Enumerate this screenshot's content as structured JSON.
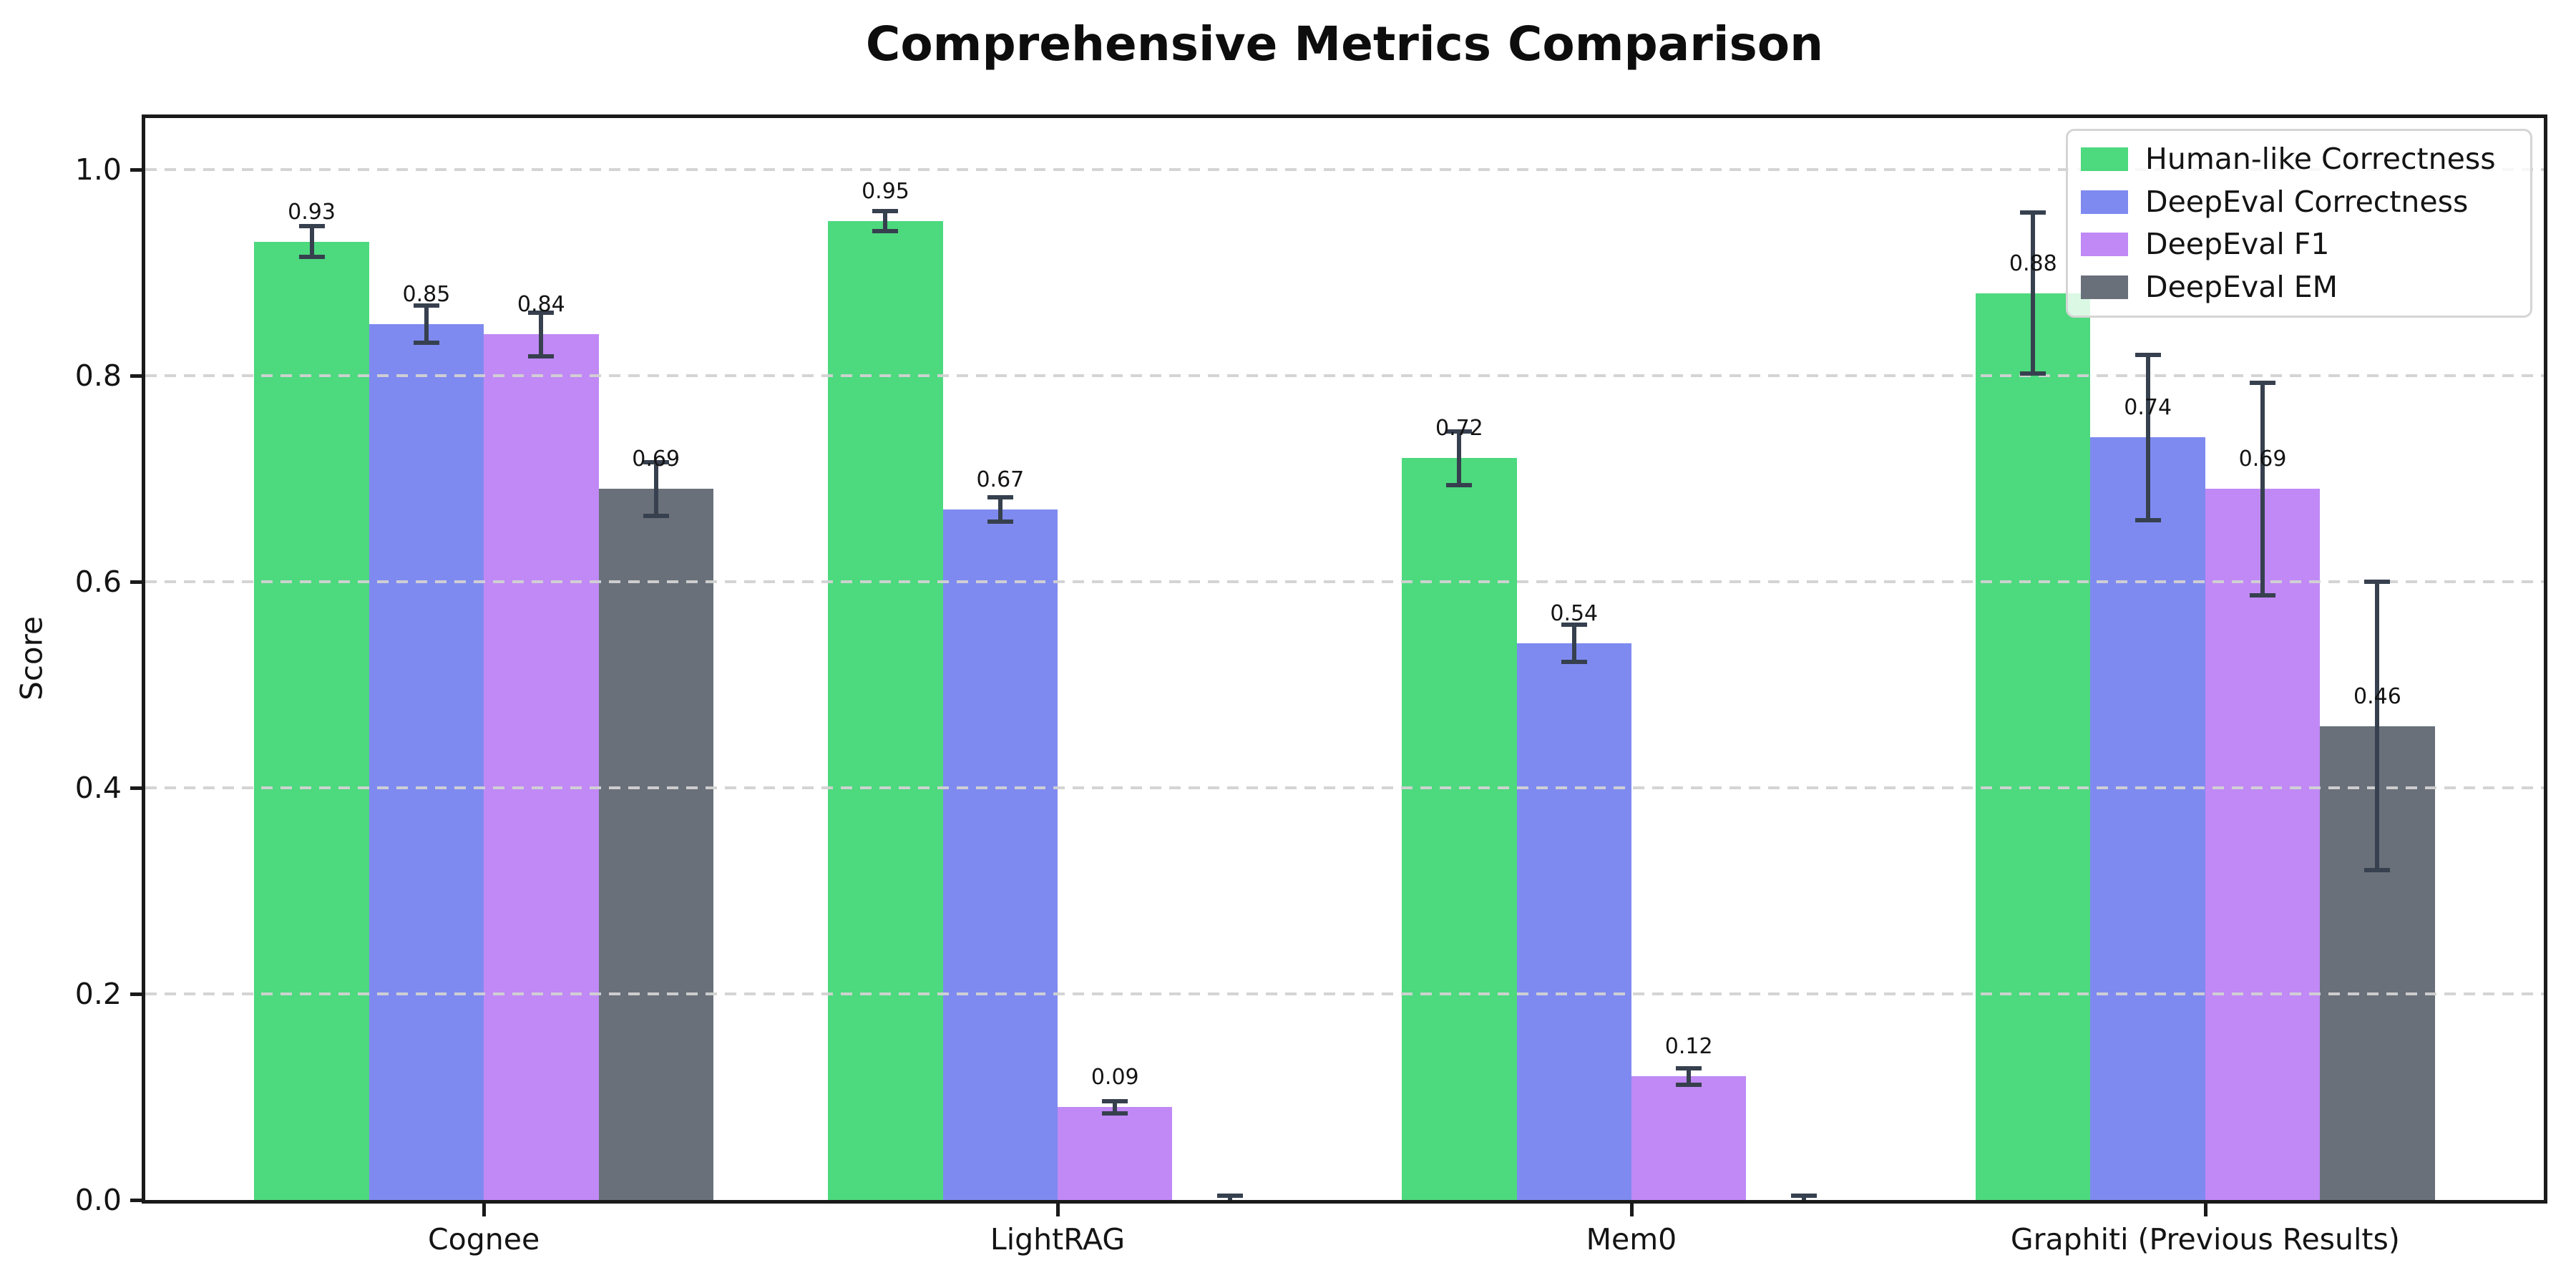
{
  "chart_data": {
    "type": "bar",
    "title": "Comprehensive Metrics Comparison",
    "ylabel": "Score",
    "xlabel": "",
    "categories": [
      "Cognee",
      "LightRAG",
      "Mem0",
      "Graphiti (Previous Results)"
    ],
    "series": [
      {
        "name": "Human-like Correctness",
        "color": "#4dd97e",
        "values": [
          0.93,
          0.95,
          0.72,
          0.88
        ],
        "errors": [
          0.015,
          0.01,
          0.026,
          0.078
        ],
        "labels": [
          "0.93",
          "0.95",
          "0.72",
          "0.88"
        ]
      },
      {
        "name": "DeepEval Correctness",
        "color": "#7f8af0",
        "values": [
          0.85,
          0.67,
          0.54,
          0.74
        ],
        "errors": [
          0.018,
          0.012,
          0.018,
          0.08
        ],
        "labels": [
          "0.85",
          "0.67",
          "0.54",
          "0.74"
        ]
      },
      {
        "name": "DeepEval F1",
        "color": "#c089f5",
        "values": [
          0.84,
          0.09,
          0.12,
          0.69
        ],
        "errors": [
          0.021,
          0.006,
          0.008,
          0.103
        ],
        "labels": [
          "0.84",
          "0.09",
          "0.12",
          "0.69"
        ]
      },
      {
        "name": "DeepEval EM",
        "color": "#69707a",
        "values": [
          0.69,
          0.0,
          0.0,
          0.46
        ],
        "errors": [
          0.026,
          0.004,
          0.004,
          0.14
        ],
        "labels": [
          "0.69",
          "",
          "",
          "0.46"
        ]
      }
    ],
    "yticks": [
      "1.0",
      "0.8",
      "0.6",
      "0.4",
      "0.2",
      "0.0"
    ],
    "ytick_values": [
      1.0,
      0.8,
      0.6,
      0.4,
      0.2,
      0.0
    ],
    "ylim": [
      0,
      1.05
    ],
    "grid": true,
    "grid_style": "dashed",
    "grid_color": "#d2d2d2",
    "errorbar_color": "#36404e",
    "legend_position": "upper right",
    "bar_width_fraction": 0.2
  }
}
